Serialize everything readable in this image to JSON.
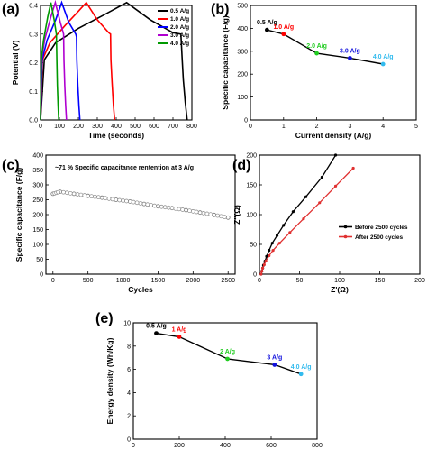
{
  "panels": {
    "a": "(a)",
    "b": "(b)",
    "c": "(c)",
    "d": "(d)",
    "e": "(e)"
  },
  "chart_data": [
    {
      "id": "a",
      "type": "line",
      "xlabel": "Time (seconds)",
      "ylabel": "Potential (V)",
      "xlim": [
        0,
        800
      ],
      "ylim": [
        0,
        0.4
      ],
      "xticks": [
        0,
        100,
        200,
        300,
        400,
        500,
        600,
        700,
        800
      ],
      "yticks": [
        0.0,
        0.1,
        0.2,
        0.3,
        0.4
      ],
      "legend_position": "top-right",
      "series": [
        {
          "name": "0.5 A/g",
          "color": "#000000",
          "x": [
            0,
            20,
            80,
            200,
            330,
            455,
            580,
            700,
            742,
            748,
            755,
            765,
            775
          ],
          "y": [
            0,
            0.21,
            0.27,
            0.32,
            0.365,
            0.41,
            0.35,
            0.305,
            0.3,
            0.22,
            0.14,
            0.06,
            0.0
          ]
        },
        {
          "name": "1.0 A/g",
          "color": "#ff0000",
          "x": [
            0,
            10,
            50,
            130,
            200,
            242,
            300,
            360,
            370,
            372,
            378,
            385,
            392
          ],
          "y": [
            0,
            0.21,
            0.27,
            0.33,
            0.38,
            0.41,
            0.35,
            0.305,
            0.3,
            0.21,
            0.13,
            0.05,
            0.0
          ]
        },
        {
          "name": "2.0 A/g",
          "color": "#0000ff",
          "x": [
            0,
            8,
            35,
            80,
            112,
            150,
            186,
            190,
            192,
            197,
            203,
            208
          ],
          "y": [
            0,
            0.21,
            0.28,
            0.35,
            0.41,
            0.34,
            0.3,
            0.29,
            0.21,
            0.12,
            0.05,
            0.0
          ]
        },
        {
          "name": "3.0 A/g",
          "color": "#b000d0",
          "x": [
            0,
            5,
            22,
            55,
            78,
            105,
            122,
            124,
            128,
            133,
            137
          ],
          "y": [
            0,
            0.21,
            0.28,
            0.36,
            0.41,
            0.34,
            0.3,
            0.21,
            0.12,
            0.05,
            0.0
          ]
        },
        {
          "name": "4.0 A/g",
          "color": "#009900",
          "x": [
            0,
            4,
            16,
            38,
            55,
            72,
            84,
            86,
            89,
            93,
            96
          ],
          "y": [
            0,
            0.21,
            0.28,
            0.36,
            0.41,
            0.35,
            0.3,
            0.21,
            0.12,
            0.05,
            0.0
          ]
        }
      ]
    },
    {
      "id": "b",
      "type": "line",
      "xlabel": "Current density (A/g)",
      "ylabel": "Specific capacitance (F/g)",
      "xlim": [
        0,
        5
      ],
      "ylim": [
        0,
        500
      ],
      "xticks": [
        0,
        1,
        2,
        3,
        4,
        5
      ],
      "yticks": [
        0,
        100,
        200,
        300,
        400,
        500
      ],
      "x": [
        0.5,
        1.0,
        2.0,
        3.0,
        4.0
      ],
      "y": [
        393,
        375,
        291,
        270,
        244
      ],
      "labels": [
        "0.5 A/g",
        "1.0 A/g",
        "2.0 A/g",
        "3.0 A/g",
        "4.0 A/g"
      ],
      "label_colors": [
        "#000000",
        "#ff0000",
        "#22cc22",
        "#1111dd",
        "#33bbee"
      ]
    },
    {
      "id": "c",
      "type": "scatter",
      "xlabel": "Cycles",
      "ylabel": "Specific capacitance (F/g)",
      "annotation": "~71 % Specific capacitance rentention at 3 A/g",
      "xlim": [
        -100,
        2600
      ],
      "ylim": [
        0,
        400
      ],
      "xticks": [
        0,
        500,
        1000,
        1500,
        2000,
        2500
      ],
      "yticks": [
        0,
        50,
        100,
        150,
        200,
        250,
        300,
        350,
        400
      ],
      "x": [
        0,
        100,
        300,
        500,
        700,
        900,
        1100,
        1300,
        1500,
        1700,
        1900,
        2100,
        2300,
        2500
      ],
      "y": [
        270,
        277,
        270,
        263,
        257,
        250,
        244,
        236,
        228,
        222,
        215,
        207,
        199,
        190
      ]
    },
    {
      "id": "d",
      "type": "line",
      "xlabel": "Z'(Ω)",
      "ylabel": "Z''(Ω)",
      "xlim": [
        0,
        200
      ],
      "ylim": [
        0,
        200
      ],
      "xticks": [
        0,
        50,
        100,
        150,
        200
      ],
      "yticks": [
        0,
        50,
        100,
        150,
        200
      ],
      "legend_position": "right",
      "series": [
        {
          "name": "Before 2500 cycles",
          "color": "#000000",
          "x": [
            2,
            3,
            4,
            5,
            7,
            9,
            12,
            16,
            22,
            30,
            42,
            58,
            78,
            95
          ],
          "y": [
            0,
            5,
            10,
            15,
            22,
            30,
            40,
            52,
            65,
            82,
            105,
            130,
            163,
            200
          ]
        },
        {
          "name": "After  2500 cycles",
          "color": "#e03030",
          "x": [
            2,
            3,
            4,
            6,
            8,
            12,
            17,
            25,
            38,
            55,
            75,
            95,
            117
          ],
          "y": [
            0,
            5,
            10,
            16,
            22,
            31,
            40,
            52,
            70,
            93,
            120,
            148,
            178
          ]
        }
      ]
    },
    {
      "id": "e",
      "type": "line",
      "xlabel": "Power density (W/kg)",
      "ylabel": "Energy density (Wh/Kg)",
      "xlim": [
        0,
        800
      ],
      "ylim": [
        0,
        10
      ],
      "xticks": [
        0,
        200,
        400,
        600,
        800
      ],
      "yticks": [
        0,
        2,
        4,
        6,
        8,
        10
      ],
      "x": [
        100,
        200,
        410,
        615,
        730
      ],
      "y": [
        9.1,
        8.8,
        6.9,
        6.4,
        5.6
      ],
      "labels": [
        "0.5 A/g",
        "1 A/g",
        "2 A/g",
        "3 A/g",
        "4.0 A/g"
      ],
      "label_colors": [
        "#000000",
        "#ff0000",
        "#22cc22",
        "#1111dd",
        "#33bbee"
      ]
    }
  ]
}
